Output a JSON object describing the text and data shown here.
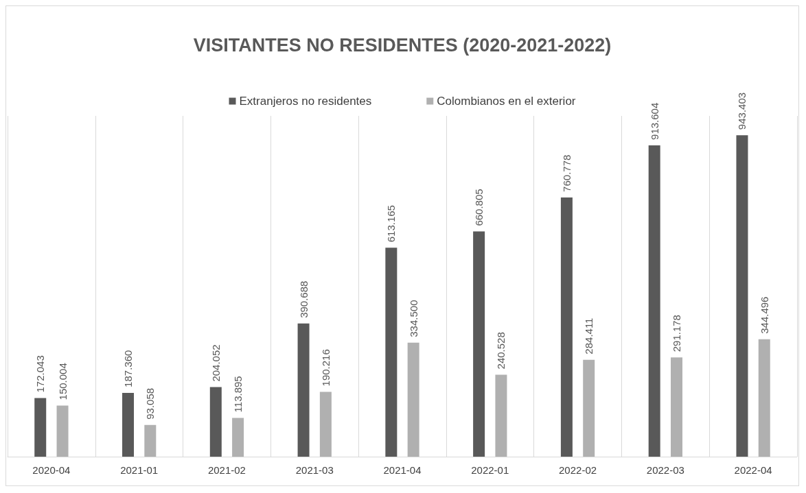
{
  "chart_data": {
    "type": "bar",
    "title": "VISITANTES NO RESIDENTES (2020-2021-2022)",
    "categories": [
      "2020-04",
      "2021-01",
      "2021-02",
      "2021-03",
      "2021-04",
      "2022-01",
      "2022-02",
      "2022-03",
      "2022-04"
    ],
    "series": [
      {
        "name": "Extranjeros no residentes",
        "color": "#595959",
        "values": [
          172043,
          187360,
          204052,
          390688,
          613165,
          660805,
          760778,
          913604,
          943403
        ],
        "value_labels": [
          "172.043",
          "187.360",
          "204.052",
          "390.688",
          "613.165",
          "660.805",
          "760.778",
          "913.604",
          "943.403"
        ]
      },
      {
        "name": "Colombianos en el exterior",
        "color": "#b0b0b0",
        "values": [
          150004,
          93058,
          113895,
          190216,
          334500,
          240528,
          284411,
          291178,
          344496
        ],
        "value_labels": [
          "150.004",
          "93.058",
          "113.895",
          "190.216",
          "334.500",
          "240.528",
          "284.411",
          "291.178",
          "344.496"
        ]
      }
    ],
    "grid": "x",
    "legend": "top"
  }
}
